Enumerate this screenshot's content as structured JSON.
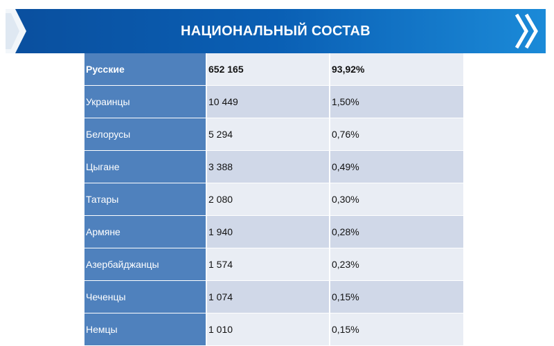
{
  "header": {
    "title": "НАЦИОНАЛЬНЫЙ СОСТАВ",
    "accent_color": "#0a5fb4",
    "chevron_icon": "double-chevron-right-icon"
  },
  "table": {
    "rows": [
      {
        "name": "Русские",
        "count": "652 165",
        "percent": "93,92%"
      },
      {
        "name": "Украинцы",
        "count": "10 449",
        "percent": "1,50%"
      },
      {
        "name": "Белорусы",
        "count": "5 294",
        "percent": "0,76%"
      },
      {
        "name": "Цыгане",
        "count": "3 388",
        "percent": "0,49%"
      },
      {
        "name": "Татары",
        "count": "2 080",
        "percent": "0,30%"
      },
      {
        "name": "Армяне",
        "count": "1 940",
        "percent": "0,28%"
      },
      {
        "name": "Азербайджанцы",
        "count": "1 574",
        "percent": "0,23%"
      },
      {
        "name": "Чеченцы",
        "count": "1 074",
        "percent": "0,15%"
      },
      {
        "name": "Немцы",
        "count": "1 010",
        "percent": "0,15%"
      }
    ]
  }
}
